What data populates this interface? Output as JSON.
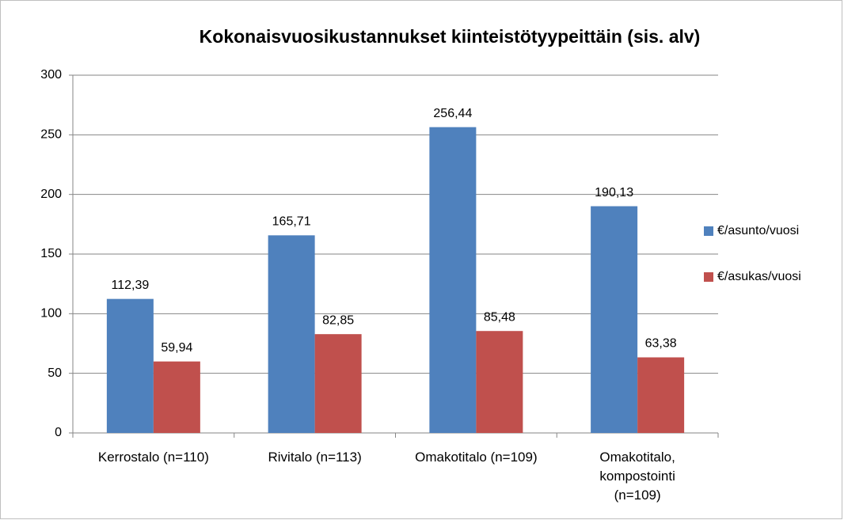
{
  "chart_data": {
    "type": "bar",
    "title": "Kokonaisvuosikustannukset kiinteistötyypeittäin (sis. alv)",
    "categories": [
      "Kerrostalo (n=110)",
      "Rivitalo (n=113)",
      "Omakotitalo (n=109)",
      "Omakotitalo, kompostointi (n=109)"
    ],
    "series": [
      {
        "name": "€/asunto/vuosi",
        "color": "#4f81bd",
        "values": [
          112.39,
          165.71,
          256.44,
          190.13
        ],
        "value_labels": [
          "112,39",
          "165,71",
          "256,44",
          "190,13"
        ]
      },
      {
        "name": "€/asukas/vuosi",
        "color": "#c0504d",
        "values": [
          59.94,
          82.85,
          85.48,
          63.38
        ],
        "value_labels": [
          "59,94",
          "82,85",
          "85,48",
          "63,38"
        ]
      }
    ],
    "ylim": [
      0,
      300
    ],
    "yticks": [
      0,
      50,
      100,
      150,
      200,
      250,
      300
    ],
    "grid": true,
    "legend": "right"
  }
}
